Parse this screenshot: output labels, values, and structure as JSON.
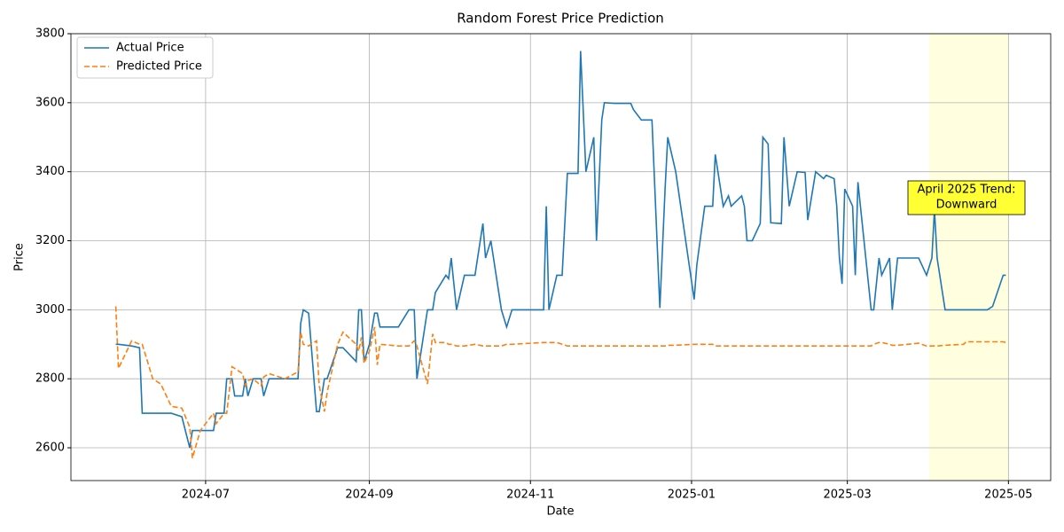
{
  "chart_data": {
    "type": "line",
    "title": "Random Forest Price Prediction",
    "xlabel": "Date",
    "ylabel": "Price",
    "x": [
      19871,
      19872,
      19877,
      19880,
      19881,
      19885,
      19888,
      19892,
      19896,
      19899,
      19900,
      19903,
      19908,
      19909,
      19912,
      19913,
      19915,
      19916,
      19919,
      19920,
      19921,
      19923,
      19926,
      19927,
      19929,
      19935,
      19940,
      19941,
      19942,
      19944,
      19947,
      19948,
      19950,
      19951,
      19955,
      19957,
      19962,
      19963,
      19964,
      19965,
      19967,
      19969,
      19970,
      19971,
      19978,
      19982,
      19984,
      19985,
      19989,
      19991,
      19992,
      19996,
      19997,
      19998,
      20000,
      20003,
      20007,
      20010,
      20011,
      20013,
      20017,
      20019,
      20021,
      20033,
      20034,
      20035,
      20038,
      20040,
      20042,
      20046,
      20047,
      20049,
      20052,
      20053,
      20055,
      20056,
      20060,
      20066,
      20067,
      20070,
      20074,
      20077,
      20079,
      20080,
      20083,
      20090,
      20091,
      20094,
      20097,
      20098,
      20101,
      20103,
      20104,
      20108,
      20109,
      20110,
      20112,
      20115,
      20116,
      20118,
      20119,
      20123,
      20124,
      20126,
      20129,
      20132,
      20133,
      20136,
      20139,
      20140,
      20143,
      20144,
      20145,
      20146,
      20147,
      20150,
      20151,
      20152,
      20157,
      20158,
      20160,
      20161,
      20164,
      20165,
      20167,
      20175,
      20178,
      20180,
      20181,
      20182,
      20185,
      20192,
      20193,
      20201,
      20203,
      20207,
      20208
    ],
    "series": [
      {
        "name": "Actual Price",
        "color": "#1f77b4",
        "linestyle": "solid",
        "values": [
          2900,
          2900,
          2895,
          2890,
          2700,
          2700,
          2700,
          2700,
          2690,
          2600,
          2650,
          2650,
          2650,
          2700,
          2700,
          2800,
          2800,
          2750,
          2750,
          2800,
          2750,
          2800,
          2800,
          2750,
          2800,
          2800,
          2800,
          2960,
          3000,
          2990,
          2705,
          2705,
          2800,
          2800,
          2890,
          2890,
          2850,
          3000,
          3000,
          2850,
          2900,
          2990,
          2990,
          2950,
          2950,
          3000,
          3000,
          2800,
          3000,
          3000,
          3050,
          3100,
          3090,
          3150,
          3000,
          3100,
          3100,
          3250,
          3150,
          3200,
          3000,
          2950,
          3000,
          3000,
          3300,
          3000,
          3100,
          3100,
          3395,
          3395,
          3750,
          3400,
          3500,
          3200,
          3550,
          3600,
          3598,
          3598,
          3580,
          3550,
          3550,
          3005,
          3350,
          3500,
          3400,
          3030,
          3130,
          3300,
          3300,
          3450,
          3300,
          3330,
          3300,
          3330,
          3300,
          3200,
          3200,
          3250,
          3500,
          3480,
          3252,
          3250,
          3500,
          3300,
          3400,
          3398,
          3260,
          3400,
          3380,
          3390,
          3380,
          3300,
          3150,
          3075,
          3350,
          3300,
          3100,
          3370,
          3000,
          3000,
          3150,
          3100,
          3150,
          3000,
          3150,
          3150,
          3100,
          3150,
          3290,
          3150,
          3000,
          3000,
          3000,
          3000,
          3010,
          3100,
          3100
        ]
      },
      {
        "name": "Predicted Price",
        "color": "#ff7f0e",
        "linestyle": "dashed",
        "values": [
          3010,
          2830,
          2910,
          2900,
          2900,
          2800,
          2785,
          2720,
          2715,
          2660,
          2570,
          2650,
          2700,
          2670,
          2700,
          2700,
          2835,
          2830,
          2815,
          2780,
          2795,
          2800,
          2780,
          2805,
          2815,
          2800,
          2820,
          2935,
          2900,
          2895,
          2910,
          2780,
          2705,
          2760,
          2900,
          2935,
          2900,
          2880,
          2920,
          2845,
          2880,
          2950,
          2840,
          2900,
          2895,
          2895,
          2910,
          2895,
          2785,
          2930,
          2905,
          2905,
          2900,
          2900,
          2895,
          2895,
          2900,
          2895,
          2895,
          2895,
          2895,
          2900,
          2900,
          2905,
          2905,
          2905,
          2905,
          2900,
          2895,
          2895,
          2895,
          2895,
          2895,
          2895,
          2895,
          2895,
          2895,
          2895,
          2895,
          2895,
          2895,
          2895,
          2895,
          2897,
          2897,
          2900,
          2900,
          2900,
          2900,
          2895,
          2895,
          2895,
          2895,
          2895,
          2895,
          2895,
          2895,
          2895,
          2895,
          2895,
          2895,
          2895,
          2895,
          2895,
          2895,
          2895,
          2895,
          2895,
          2895,
          2895,
          2895,
          2895,
          2895,
          2895,
          2895,
          2895,
          2895,
          2895,
          2895,
          2900,
          2905,
          2905,
          2900,
          2897,
          2897,
          2903,
          2895,
          2895,
          2895,
          2895,
          2897,
          2900,
          2907,
          2907,
          2907,
          2907,
          2905
        ]
      }
    ],
    "xlim": [
      19854,
      20225
    ],
    "xticks": [
      {
        "value": 19905,
        "label": "2024-07"
      },
      {
        "value": 19967,
        "label": "2024-09"
      },
      {
        "value": 20028,
        "label": "2024-11"
      },
      {
        "value": 20089,
        "label": "2025-01"
      },
      {
        "value": 20148,
        "label": "2025-03"
      },
      {
        "value": 20209,
        "label": "2025-05"
      }
    ],
    "ylim": [
      2505,
      3800
    ],
    "yticks": [
      2600,
      2800,
      3000,
      3200,
      3400,
      3600,
      3800
    ],
    "grid": true,
    "legend": "upper-left",
    "highlight": {
      "x": [
        20179,
        20209
      ],
      "color": "#ffffe0"
    },
    "annotation": {
      "lines": [
        "April 2025 Trend:",
        "Downward"
      ],
      "color": "#ffff33"
    }
  }
}
